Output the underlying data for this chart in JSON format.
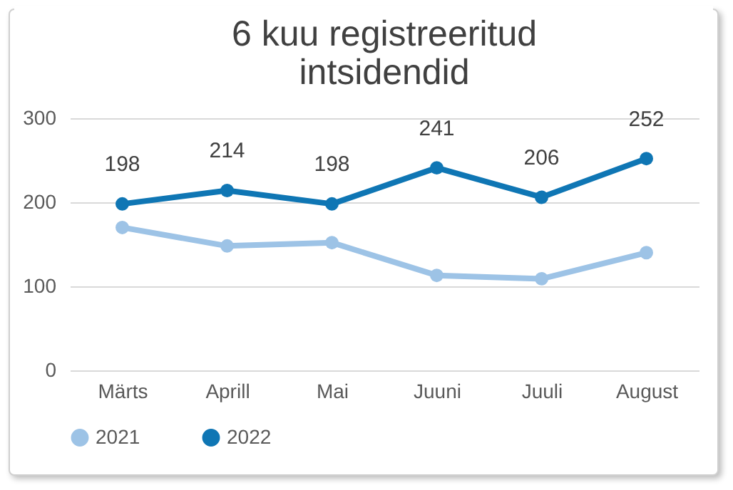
{
  "chart_data": {
    "type": "line",
    "title": "6 kuu registreeritud intsidendid",
    "categories": [
      "Märts",
      "Aprill",
      "Mai",
      "Juuni",
      "Juuli",
      "August"
    ],
    "series": [
      {
        "name": "2021",
        "color": "#9dc3e6",
        "values": [
          170,
          148,
          152,
          113,
          109,
          140
        ]
      },
      {
        "name": "2022",
        "color": "#0f76b4",
        "values": [
          198,
          214,
          198,
          241,
          206,
          252
        ],
        "value_labels": [
          "198",
          "214",
          "198",
          "241",
          "206",
          "252"
        ]
      }
    ],
    "ylim": [
      0,
      300
    ],
    "yticks": [
      0,
      100,
      200,
      300
    ],
    "grid": "y",
    "legend": "bottom",
    "marker": "circle",
    "line_style": "solid"
  }
}
